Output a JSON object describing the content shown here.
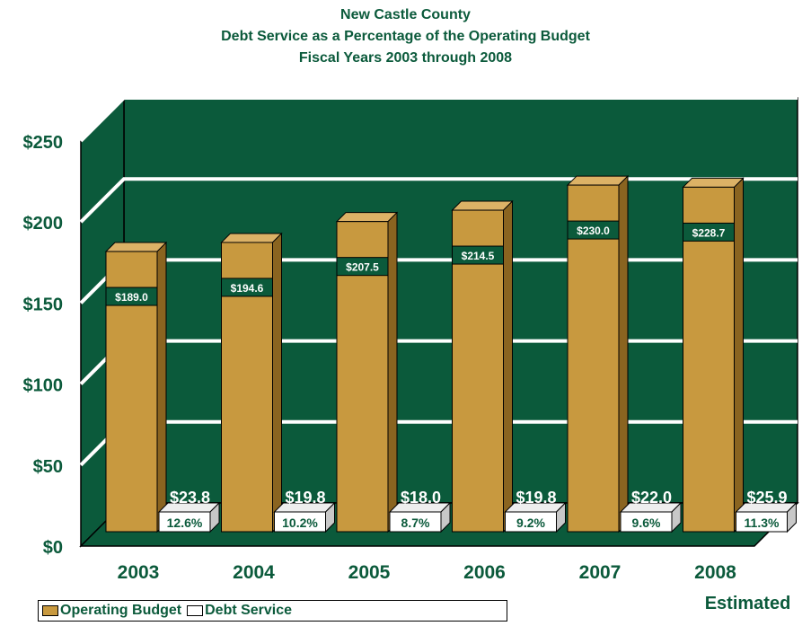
{
  "colors": {
    "plot_background": "#0b5a3b",
    "gridline": "#ffffff",
    "operating_bar": "#c8993f",
    "operating_bar_side": "#8a6420",
    "operating_bar_top": "#dcb266",
    "debt_bar": "#ffffff",
    "debt_bar_side": "#c8c8c8",
    "text": "#0b5a3b"
  },
  "chart_data": {
    "type": "bar",
    "title_lines": [
      "New Castle County",
      "Debt Service as a Percentage of the Operating Budget",
      "Fiscal Years 2003 through 2008"
    ],
    "categories": [
      "2003",
      "2004",
      "2005",
      "2006",
      "2007",
      "2008"
    ],
    "category_sublabels": [
      "",
      "",
      "",
      "",
      "",
      "Estimated"
    ],
    "ylim": [
      0,
      250
    ],
    "yticks": [
      0,
      50,
      100,
      150,
      200,
      250
    ],
    "ytick_labels": [
      "$0",
      "$50",
      "$100",
      "$150",
      "$200",
      "$250"
    ],
    "grid": true,
    "three_d": true,
    "series": [
      {
        "name": "Operating Budget",
        "values": [
          189.0,
          194.6,
          207.5,
          214.5,
          230.0,
          228.7
        ],
        "labels": [
          "$189.0",
          "$194.6",
          "$207.5",
          "$214.5",
          "$230.0",
          "$228.7"
        ]
      },
      {
        "name": "Debt Service",
        "values": [
          23.8,
          19.8,
          18.0,
          19.8,
          22.0,
          25.9
        ],
        "labels": [
          "$23.8",
          "$19.8",
          "$18.0",
          "$19.8",
          "$22.0",
          "$25.9"
        ],
        "percent_labels": [
          "12.6%",
          "10.2%",
          "8.7%",
          "9.2%",
          "9.6%",
          "11.3%"
        ]
      }
    ],
    "legend": {
      "placement": "bottom-left",
      "items": [
        "Operating Budget",
        "Debt Service"
      ]
    }
  }
}
